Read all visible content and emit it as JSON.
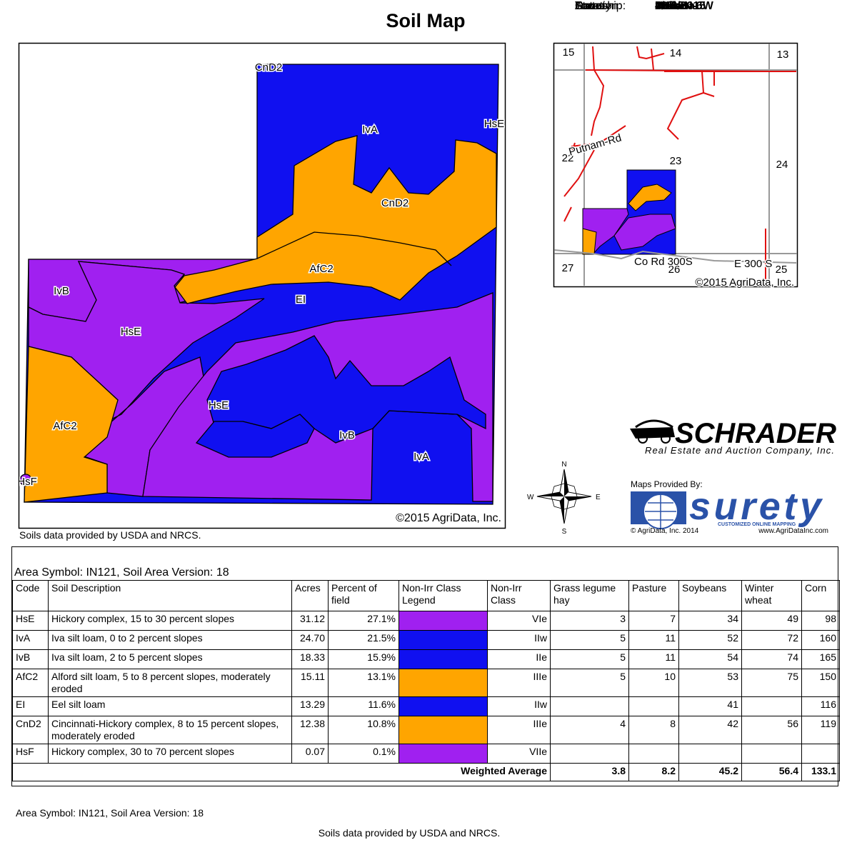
{
  "title": "Soil Map",
  "soil_map": {
    "labels": [
      "CnD2",
      "IvA",
      "HsE",
      "CnD2",
      "AfC2",
      "EI",
      "IvB",
      "HsE",
      "HsE",
      "AfC2",
      "IvB",
      "IvA",
      "HsF"
    ],
    "copyright": "©2015 AgriData, Inc."
  },
  "map_note": "Soils data provided by USDA and NRCS.",
  "locator_map": {
    "sections": [
      "15",
      "14",
      "13",
      "22",
      "23",
      "24",
      "27",
      "26",
      "25"
    ],
    "roads": [
      "Putnam-Rd",
      "Co Rd 300S",
      "E 300 S"
    ],
    "copyright": "©2015 AgriData, Inc."
  },
  "info": [
    {
      "label": "State:",
      "value": "Indiana"
    },
    {
      "label": "County:",
      "value": "Parke"
    },
    {
      "label": "Location:",
      "value": "23-15N-6W"
    },
    {
      "label": "Township:",
      "value": "Union"
    },
    {
      "label": "Acres:",
      "value": "115"
    },
    {
      "label": "Date:",
      "value": "4/16/2015"
    }
  ],
  "schrader": {
    "name": "SCHRADER",
    "tagline": "Real Estate and Auction Company, Inc."
  },
  "compass": {
    "north": "N",
    "south": "S",
    "east": "E",
    "west": "W"
  },
  "surety": {
    "provided_by": "Maps Provided By:",
    "name": "surety",
    "slogan": "CUSTOMIZED ONLINE MAPPING",
    "copyright": "© AgriData, Inc. 2014",
    "url": "www.AgriDataInc.com"
  },
  "table": {
    "caption": "Area Symbol: IN121, Soil Area Version: 18",
    "headers": [
      "Code",
      "Soil Description",
      "Acres",
      "Percent of field",
      "Non-Irr Class Legend",
      "Non-Irr Class",
      "Grass legume hay",
      "Pasture",
      "Soybeans",
      "Winter wheat",
      "Corn"
    ],
    "rows": [
      [
        "HsE",
        "Hickory complex, 15 to 30 percent slopes",
        "31.12",
        "27.1%",
        "VIe",
        "3",
        "7",
        "34",
        "49",
        "98"
      ],
      [
        "IvA",
        "Iva silt loam, 0 to 2 percent slopes",
        "24.70",
        "21.5%",
        "IIw",
        "5",
        "11",
        "52",
        "72",
        "160"
      ],
      [
        "IvB",
        "Iva silt loam, 2 to 5 percent slopes",
        "18.33",
        "15.9%",
        "IIe",
        "5",
        "11",
        "54",
        "74",
        "165"
      ],
      [
        "AfC2",
        "Alford silt loam, 5 to 8 percent slopes, moderately eroded",
        "15.11",
        "13.1%",
        "IIIe",
        "5",
        "10",
        "53",
        "75",
        "150"
      ],
      [
        "EI",
        "Eel silt loam",
        "13.29",
        "11.6%",
        "IIw",
        null,
        null,
        "41",
        null,
        "116"
      ],
      [
        "CnD2",
        "Cincinnati-Hickory complex, 8 to 15 percent slopes, moderately eroded",
        "12.38",
        "10.8%",
        "IIIe",
        "4",
        "8",
        "42",
        "56",
        "119"
      ],
      [
        "HsF",
        "Hickory complex, 30 to 70 percent slopes",
        "0.07",
        "0.1%",
        "VIIe",
        null,
        null,
        null,
        null,
        null
      ]
    ],
    "legend_colors": [
      "#a020f0",
      "#1010f0",
      "#1010f0",
      "#ffa500",
      "#1010f0",
      "#ffa500",
      "#a020f0"
    ],
    "weighted_average": {
      "label": "Weighted Average",
      "values": [
        "3.8",
        "8.2",
        "45.2",
        "56.4",
        "133.1"
      ]
    }
  },
  "footer": {
    "area_symbol": "Area Symbol: IN121, Soil Area Version: 18",
    "source": "Soils data provided by USDA and NRCS."
  }
}
